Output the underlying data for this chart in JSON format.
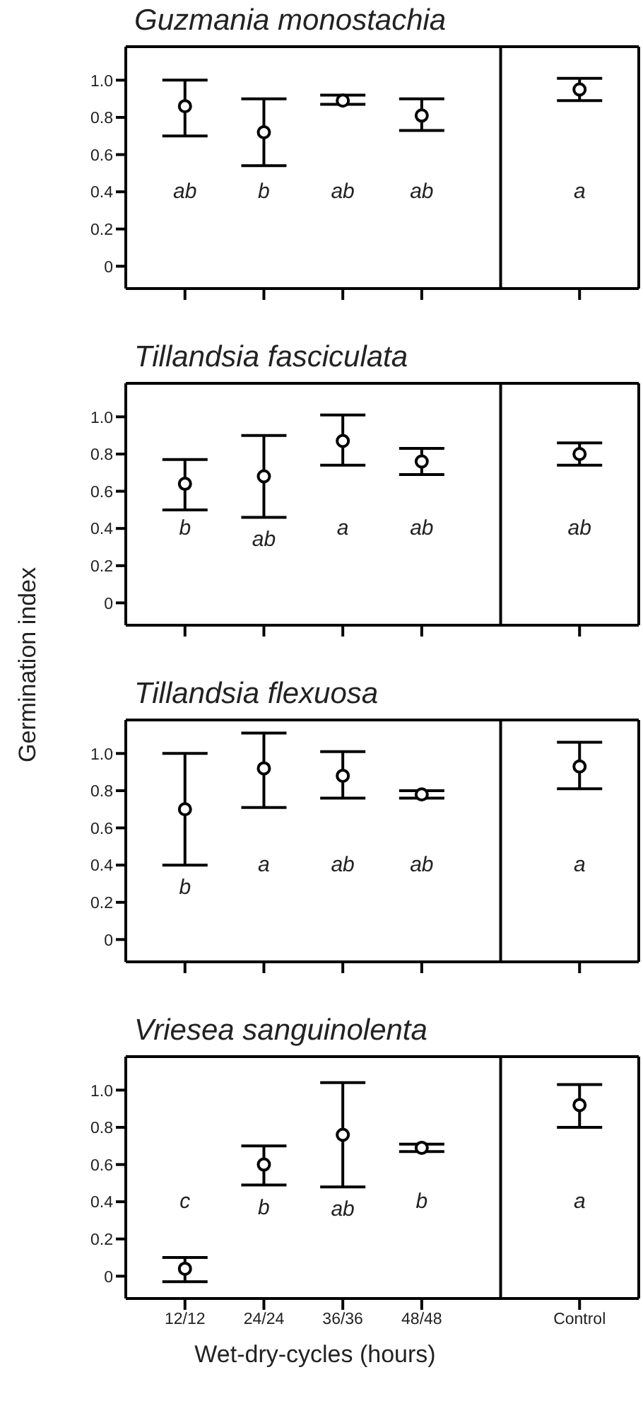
{
  "chart_data": [
    {
      "type": "scatter",
      "title": "Guzmania monostachia",
      "categories": [
        null,
        null,
        null,
        null,
        null,
        null
      ],
      "ylim": [
        -0.12,
        1.18
      ],
      "yticks": [
        {
          "value": 0,
          "label": "0"
        },
        {
          "value": 0.2,
          "label": "0.2"
        },
        {
          "value": 0.4,
          "label": "0.4"
        },
        {
          "value": 0.6,
          "label": "0.6"
        },
        {
          "value": 0.8,
          "label": "0.8"
        },
        {
          "value": 1,
          "label": "1.0"
        }
      ],
      "tick_labels": "y",
      "marker": "circle",
      "color": "#000000",
      "values": [
        0.86,
        0.72,
        0.89,
        0.81,
        null,
        0.95
      ],
      "errors": [
        [
          0.7,
          1.0
        ],
        [
          0.54,
          0.9
        ],
        [
          0.87,
          0.92
        ],
        [
          0.73,
          0.9
        ],
        null,
        [
          0.89,
          1.01
        ]
      ],
      "annotations": [
        "ab",
        "b",
        "ab",
        "ab",
        "a"
      ]
    },
    {
      "type": "scatter",
      "title": "Tillandsia fasciculata",
      "ylabel": "Germination index",
      "categories": [
        null,
        null,
        null,
        null,
        null,
        null
      ],
      "ylim": [
        -0.12,
        1.18
      ],
      "yticks": [
        {
          "value": 0,
          "label": "0"
        },
        {
          "value": 0.2,
          "label": "0.2"
        },
        {
          "value": 0.4,
          "label": "0.4"
        },
        {
          "value": 0.6,
          "label": "0.6"
        },
        {
          "value": 0.8,
          "label": "0.8"
        },
        {
          "value": 1,
          "label": "1.0"
        }
      ],
      "tick_labels": "y",
      "marker": "circle",
      "color": "#000000",
      "values": [
        0.64,
        0.68,
        0.87,
        0.76,
        null,
        0.8
      ],
      "errors": [
        [
          0.5,
          0.77
        ],
        [
          0.46,
          0.9
        ],
        [
          0.74,
          1.01
        ],
        [
          0.69,
          0.83
        ],
        null,
        [
          0.74,
          0.86
        ]
      ],
      "annotations": [
        "b",
        "ab",
        "a",
        "ab",
        "ab"
      ]
    },
    {
      "type": "scatter",
      "title": "Tillandsia flexuosa",
      "categories": [
        null,
        null,
        null,
        null,
        null,
        null
      ],
      "ylim": [
        -0.12,
        1.18
      ],
      "yticks": [
        {
          "value": 0,
          "label": "0"
        },
        {
          "value": 0.2,
          "label": "0.2"
        },
        {
          "value": 0.4,
          "label": "0.4"
        },
        {
          "value": 0.6,
          "label": "0.6"
        },
        {
          "value": 0.8,
          "label": "0.8"
        },
        {
          "value": 1,
          "label": "1.0"
        }
      ],
      "tick_labels": "y",
      "marker": "circle",
      "color": "#000000",
      "values": [
        0.7,
        0.92,
        0.88,
        0.78,
        null,
        0.93
      ],
      "errors": [
        [
          0.4,
          1.0
        ],
        [
          0.71,
          1.11
        ],
        [
          0.76,
          1.01
        ],
        [
          0.76,
          0.8
        ],
        null,
        [
          0.81,
          1.06
        ]
      ],
      "annotations": [
        "b",
        "a",
        "ab",
        "ab",
        "a"
      ]
    },
    {
      "type": "scatter",
      "title": "Vriesea sanguinolenta",
      "xlabel": "Wet-dry-cycles (hours)",
      "categories": [
        "12/12",
        "24/24",
        "36/36",
        "48/48",
        null,
        "Control"
      ],
      "ylim": [
        -0.12,
        1.18
      ],
      "yticks": [
        {
          "value": 0,
          "label": "0"
        },
        {
          "value": 0.2,
          "label": "0.2"
        },
        {
          "value": 0.4,
          "label": "0.4"
        },
        {
          "value": 0.6,
          "label": "0.6"
        },
        {
          "value": 0.8,
          "label": "0.8"
        },
        {
          "value": 1,
          "label": "1.0"
        }
      ],
      "marker": "circle",
      "color": "#000000",
      "values": [
        0.04,
        0.6,
        0.76,
        0.69,
        null,
        0.92
      ],
      "errors": [
        [
          -0.03,
          0.1
        ],
        [
          0.49,
          0.7
        ],
        [
          0.48,
          1.04
        ],
        [
          0.67,
          0.71
        ],
        null,
        [
          0.8,
          1.03
        ]
      ],
      "annotations": [
        "c",
        "b",
        "ab",
        "b",
        "a"
      ]
    }
  ]
}
